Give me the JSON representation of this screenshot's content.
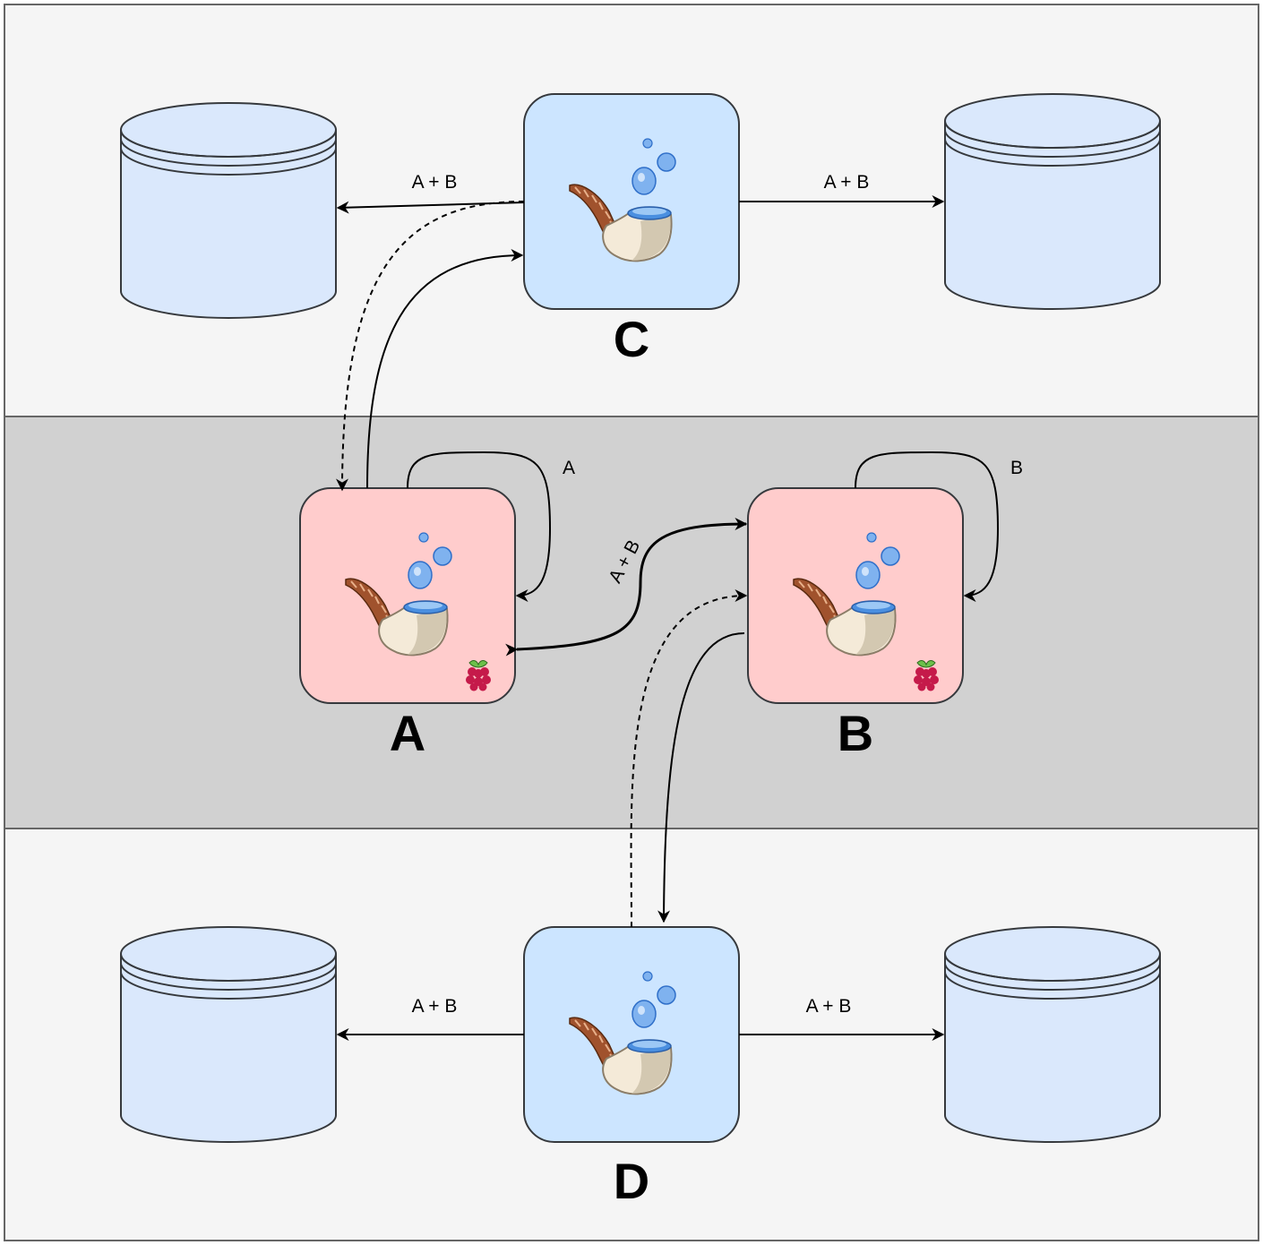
{
  "colors": {
    "outer_band": "#f5f5f5",
    "middle_band": "#d1d1d1",
    "band_stroke": "#666666",
    "server_fill": "#cce5ff",
    "edge_fill": "#ffcccc",
    "db_fill": "#dae8fc",
    "stroke": "#36393d"
  },
  "nodes": {
    "A": {
      "label": "A",
      "icon": "pipe-bubbles-icon",
      "badge": "raspberry-icon"
    },
    "B": {
      "label": "B",
      "icon": "pipe-bubbles-icon",
      "badge": "raspberry-icon"
    },
    "C": {
      "label": "C",
      "icon": "pipe-bubbles-icon"
    },
    "D": {
      "label": "D",
      "icon": "pipe-bubbles-icon"
    }
  },
  "edges": {
    "c_left": "A + B",
    "c_right": "A + B",
    "d_left": "A + B",
    "d_right": "A + B",
    "a_self": "A",
    "b_self": "B",
    "a_b": "A + B"
  }
}
